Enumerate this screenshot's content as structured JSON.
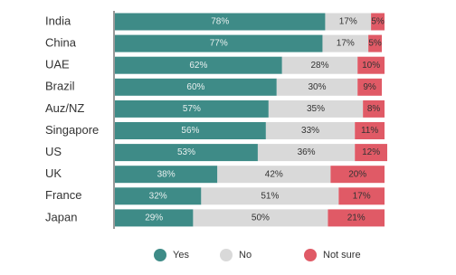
{
  "chart_data": {
    "type": "stacked-bar",
    "categories": [
      "India",
      "China",
      "UAE",
      "Brazil",
      "Auz/NZ",
      "Singapore",
      "US",
      "UK",
      "France",
      "Japan"
    ],
    "series": [
      {
        "name": "Yes",
        "color": "#3e8b87",
        "values": [
          78,
          77,
          62,
          60,
          57,
          56,
          53,
          38,
          32,
          29
        ],
        "value_labels": [
          "78%",
          "77%",
          "62%",
          "60%",
          "57%",
          "56%",
          "53%",
          "38%",
          "32%",
          "29%"
        ]
      },
      {
        "name": "No",
        "color": "#d9d9d9",
        "values": [
          17,
          17,
          28,
          30,
          35,
          33,
          36,
          42,
          51,
          50
        ],
        "value_labels": [
          "17%",
          "17%",
          "28%",
          "30%",
          "35%",
          "33%",
          "36%",
          "42%",
          "51%",
          "50%"
        ]
      },
      {
        "name": "Not sure",
        "color": "#e05a66",
        "values": [
          5,
          5,
          10,
          9,
          8,
          11,
          12,
          20,
          17,
          21
        ],
        "value_labels": [
          "5%",
          "5%",
          "10%",
          "9%",
          "8%",
          "11%",
          "12%",
          "20%",
          "17%",
          "21%"
        ]
      }
    ]
  }
}
